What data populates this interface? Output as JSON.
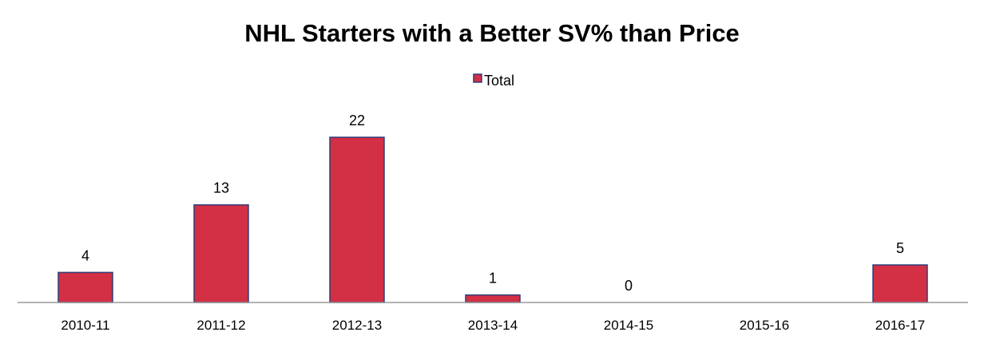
{
  "chart_data": {
    "type": "bar",
    "title": "NHL Starters with a Better SV% than Price",
    "xlabel": "",
    "ylabel": "",
    "categories": [
      "2010-11",
      "2011-12",
      "2012-13",
      "2013-14",
      "2014-15",
      "2015-16",
      "2016-17"
    ],
    "series": [
      {
        "name": "Total",
        "values": [
          4,
          13,
          22,
          1,
          0,
          null,
          5
        ],
        "data_labels": [
          "4",
          "13",
          "22",
          "1",
          "0",
          "",
          "5"
        ]
      }
    ],
    "ylim": [
      0,
      22
    ],
    "grid": false,
    "legend_position": "top-center",
    "colors": {
      "bar_fill": "#d32f45",
      "bar_stroke": "#2e3f7a",
      "axis": "#9a9a9a"
    }
  }
}
